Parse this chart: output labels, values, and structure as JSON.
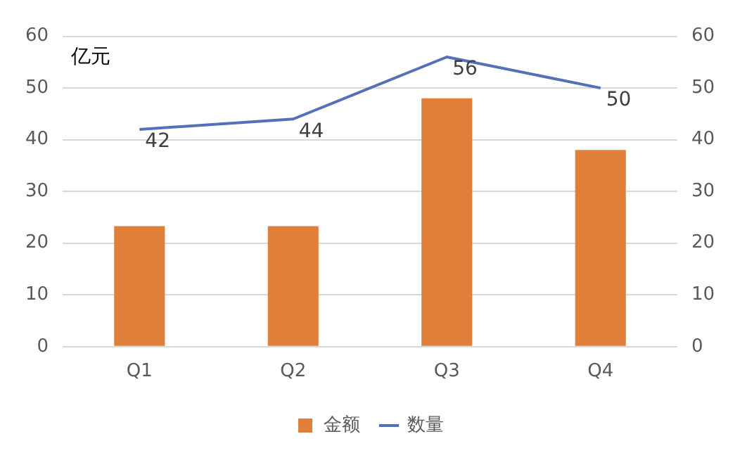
{
  "chart_data": {
    "type": "bar",
    "ylabel": "亿元",
    "categories": [
      "Q1",
      "Q2",
      "Q3",
      "Q4"
    ],
    "series": [
      {
        "name": "金额",
        "color": "#e07f3a",
        "values": [
          23.3,
          23.3,
          48,
          38
        ]
      },
      {
        "name": "数量",
        "type": "line",
        "color": "#5470b8",
        "values": [
          42,
          44,
          56,
          50
        ],
        "value_labels": [
          "42",
          "44",
          "56",
          "50"
        ]
      }
    ],
    "ylim": [
      0,
      60
    ],
    "yticks": [
      0,
      10,
      20,
      30,
      40,
      50,
      60
    ],
    "y2lim": [
      0,
      60
    ],
    "y2ticks": [
      0,
      10,
      20,
      30,
      40,
      50,
      60
    ],
    "grid": "y",
    "legend": "bottom",
    "marker": "none"
  }
}
